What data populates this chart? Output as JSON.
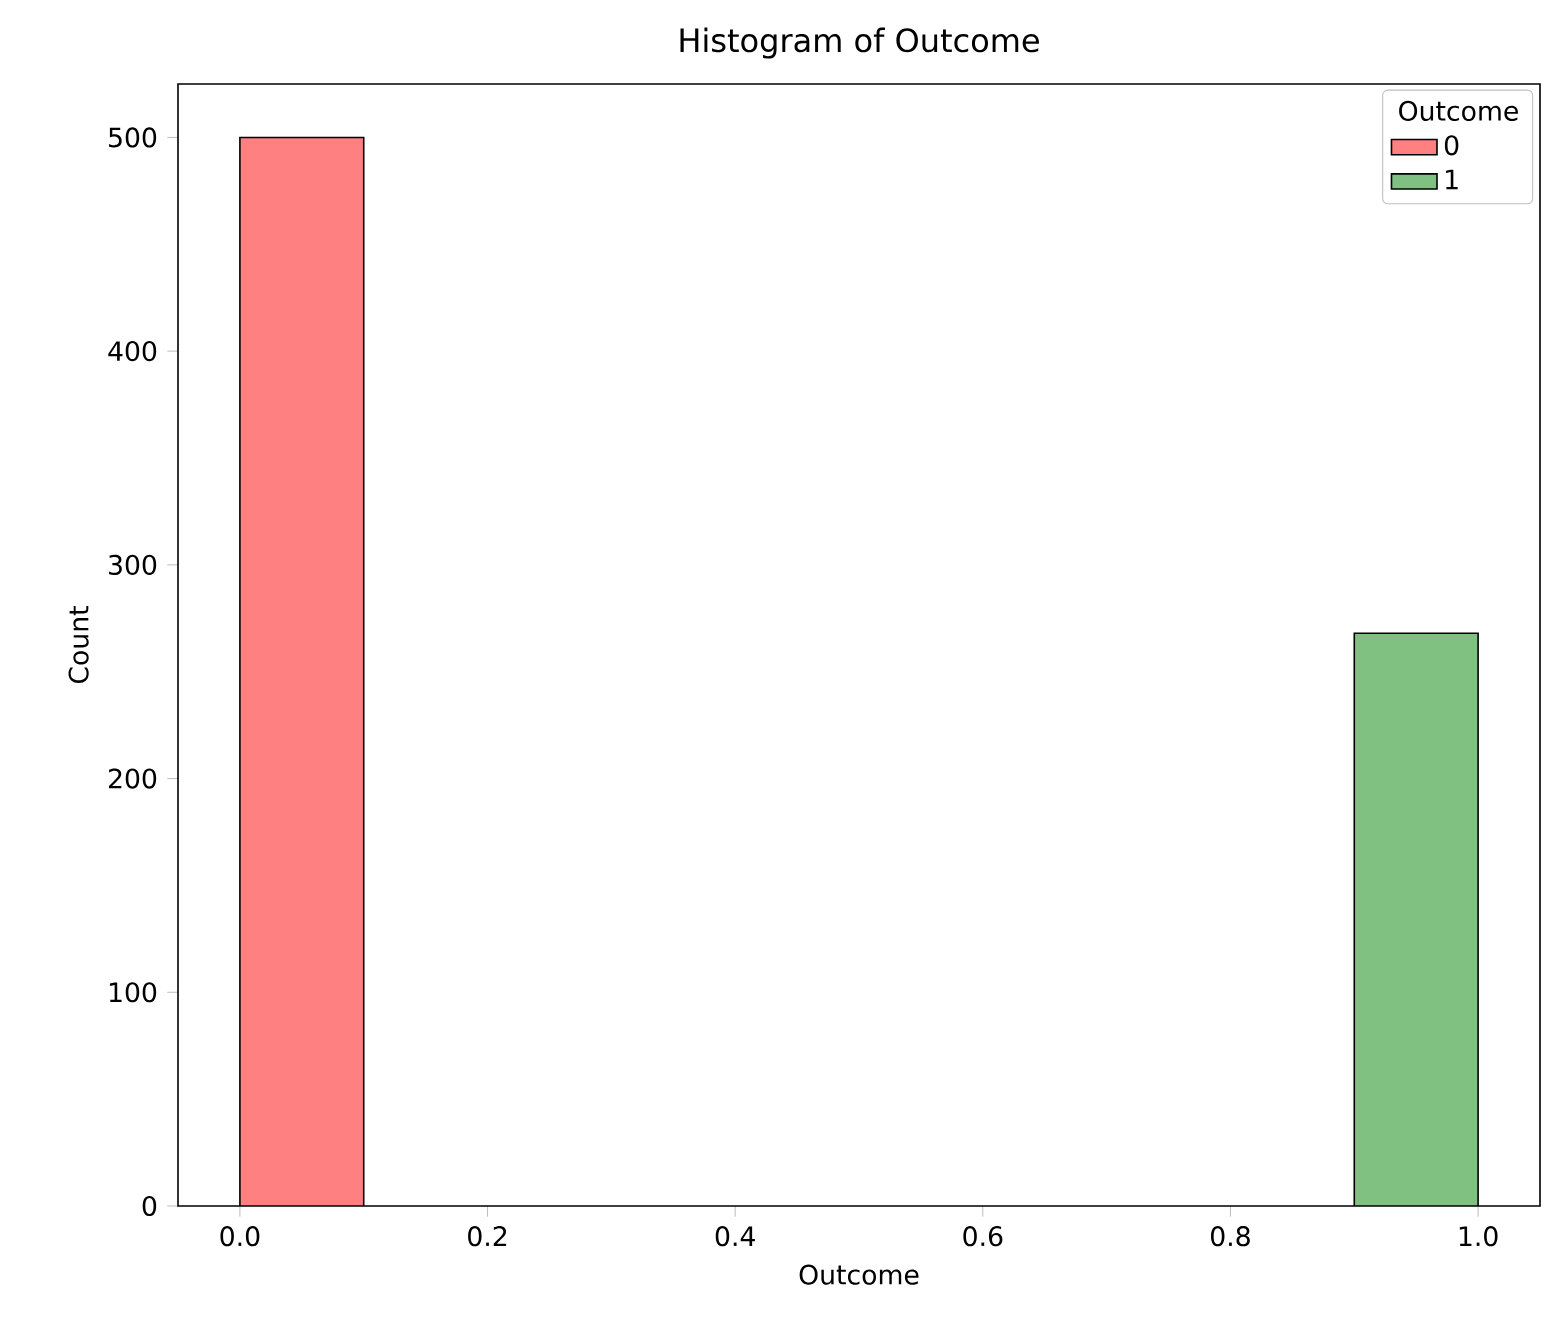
{
  "chart_data": {
    "type": "histogram",
    "title": "Histogram of Outcome",
    "xlabel": "Outcome",
    "ylabel": "Count",
    "legend_title": "Outcome",
    "bins": [
      0.0,
      0.1,
      0.2,
      0.3,
      0.4,
      0.5,
      0.6,
      0.7,
      0.8,
      0.9,
      1.0
    ],
    "series": [
      {
        "name": "0",
        "color": "#ff8080",
        "values": [
          500,
          0,
          0,
          0,
          0,
          0,
          0,
          0,
          0,
          0
        ]
      },
      {
        "name": "1",
        "color": "#80c080",
        "values": [
          0,
          0,
          0,
          0,
          0,
          0,
          0,
          0,
          0,
          268
        ]
      }
    ],
    "xlim": [
      -0.05,
      1.05
    ],
    "ylim": [
      0,
      525
    ],
    "xticks": [
      {
        "value": 0,
        "label": "0.0"
      },
      {
        "value": 0.2,
        "label": "0.2"
      },
      {
        "value": 0.4,
        "label": "0.4"
      },
      {
        "value": 0.6,
        "label": "0.6"
      },
      {
        "value": 0.8,
        "label": "0.8"
      },
      {
        "value": 1,
        "label": "1.0"
      }
    ],
    "yticks": [
      0,
      100,
      200,
      300,
      400,
      500
    ],
    "legend": "top right",
    "grid": false
  }
}
